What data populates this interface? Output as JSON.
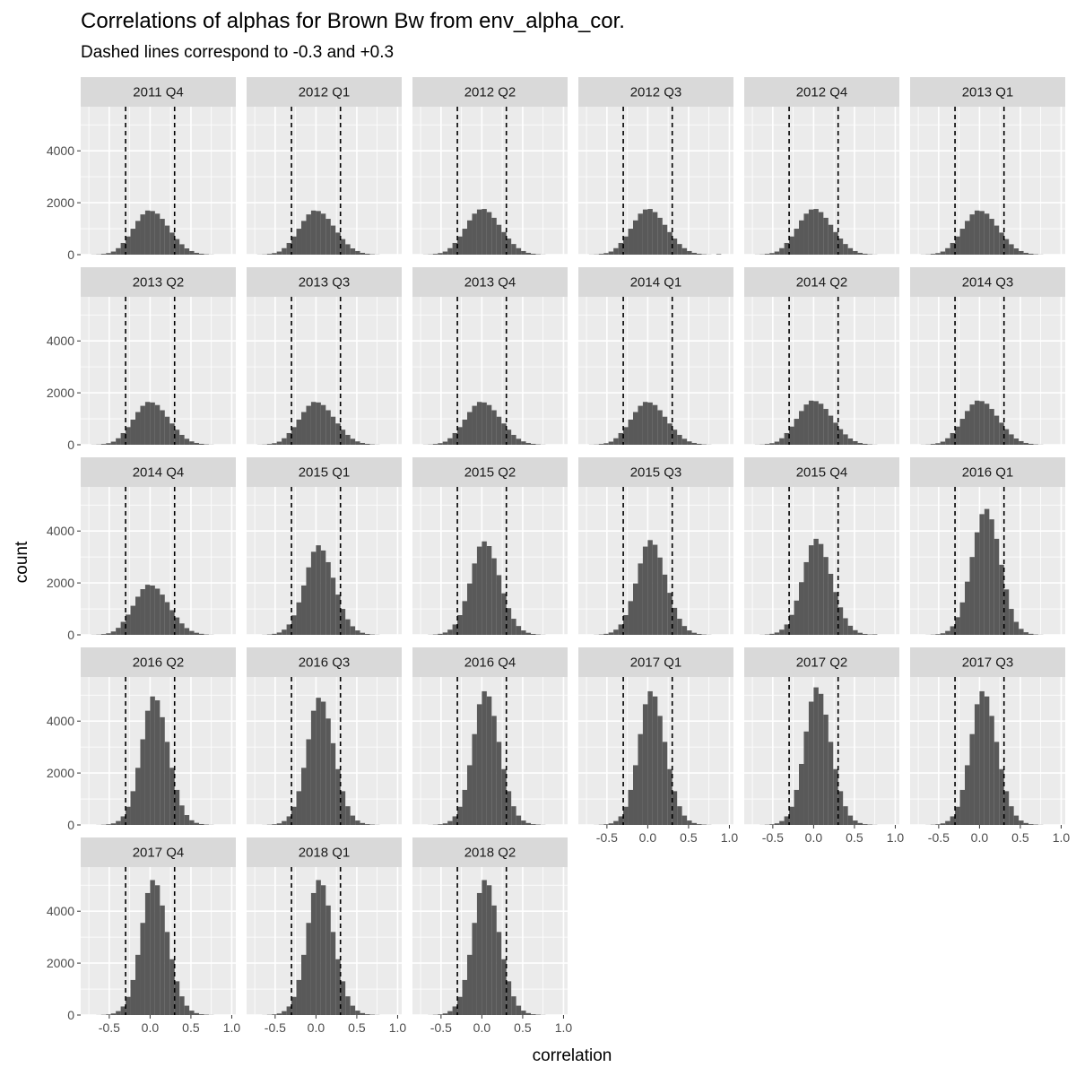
{
  "chart_data": {
    "type": "bar",
    "title": "Correlations of alphas for Brown Bw from env_alpha_cor.",
    "subtitle": "Dashed lines correspond to -0.3 and +0.3",
    "xlabel": "correlation",
    "ylabel": "count",
    "xlim": [
      -0.85,
      1.05
    ],
    "ylim": [
      0,
      5700
    ],
    "x_ticks": [
      -0.5,
      0.0,
      0.5,
      1.0
    ],
    "x_tick_labels": [
      "-0.5",
      "0.0",
      "0.5",
      "1.0"
    ],
    "y_ticks": [
      0,
      2000,
      4000
    ],
    "y_tick_labels": [
      "0",
      "2000",
      "4000"
    ],
    "reference_lines": [
      -0.3,
      0.3
    ],
    "bar_color": "#595959",
    "panel_background": "#ebebeb",
    "strip_background": "#d9d9d9",
    "grid": true,
    "facet_layout": {
      "ncol": 6,
      "nrow": 5
    },
    "bin_centers": [
      -0.75,
      -0.69,
      -0.63,
      -0.57,
      -0.51,
      -0.45,
      -0.39,
      -0.33,
      -0.27,
      -0.21,
      -0.15,
      -0.09,
      -0.03,
      0.03,
      0.09,
      0.15,
      0.21,
      0.27,
      0.33,
      0.39,
      0.45,
      0.51,
      0.57,
      0.63,
      0.69,
      0.75,
      0.81,
      0.87,
      0.93
    ],
    "facets": [
      {
        "label": "2011 Q4",
        "values": [
          0,
          5,
          10,
          30,
          60,
          120,
          250,
          450,
          700,
          1000,
          1300,
          1550,
          1700,
          1680,
          1580,
          1380,
          1120,
          850,
          600,
          400,
          240,
          140,
          70,
          35,
          15,
          5,
          0,
          0,
          0
        ]
      },
      {
        "label": "2012 Q1",
        "values": [
          0,
          5,
          10,
          30,
          60,
          120,
          250,
          450,
          700,
          1000,
          1300,
          1550,
          1700,
          1680,
          1580,
          1380,
          1120,
          850,
          600,
          400,
          240,
          140,
          70,
          35,
          15,
          5,
          0,
          0,
          0
        ]
      },
      {
        "label": "2012 Q2",
        "values": [
          0,
          5,
          10,
          30,
          60,
          120,
          250,
          450,
          700,
          1000,
          1320,
          1580,
          1740,
          1760,
          1640,
          1420,
          1150,
          870,
          620,
          410,
          250,
          140,
          70,
          35,
          15,
          5,
          0,
          0,
          0
        ]
      },
      {
        "label": "2012 Q3",
        "values": [
          0,
          5,
          10,
          30,
          60,
          120,
          250,
          450,
          700,
          1000,
          1320,
          1580,
          1740,
          1760,
          1640,
          1420,
          1150,
          870,
          620,
          410,
          250,
          140,
          70,
          35,
          15,
          5,
          0,
          20,
          0
        ]
      },
      {
        "label": "2012 Q4",
        "values": [
          0,
          5,
          10,
          30,
          60,
          120,
          250,
          450,
          700,
          1000,
          1320,
          1580,
          1740,
          1760,
          1640,
          1420,
          1150,
          870,
          620,
          410,
          250,
          140,
          70,
          35,
          15,
          5,
          0,
          0,
          0
        ]
      },
      {
        "label": "2013 Q1",
        "values": [
          0,
          5,
          10,
          30,
          60,
          120,
          250,
          450,
          700,
          1000,
          1300,
          1550,
          1700,
          1680,
          1580,
          1380,
          1120,
          850,
          600,
          400,
          240,
          140,
          70,
          35,
          15,
          5,
          0,
          0,
          0
        ]
      },
      {
        "label": "2013 Q2",
        "values": [
          0,
          5,
          10,
          30,
          60,
          120,
          250,
          450,
          680,
          970,
          1260,
          1500,
          1650,
          1630,
          1530,
          1330,
          1080,
          820,
          580,
          380,
          230,
          130,
          70,
          35,
          15,
          5,
          0,
          0,
          0
        ]
      },
      {
        "label": "2013 Q3",
        "values": [
          0,
          5,
          10,
          30,
          60,
          120,
          250,
          450,
          680,
          970,
          1260,
          1500,
          1650,
          1630,
          1530,
          1330,
          1080,
          820,
          580,
          380,
          230,
          130,
          70,
          35,
          15,
          5,
          0,
          0,
          0
        ]
      },
      {
        "label": "2013 Q4",
        "values": [
          0,
          5,
          10,
          30,
          60,
          120,
          250,
          450,
          680,
          970,
          1260,
          1500,
          1650,
          1630,
          1530,
          1330,
          1080,
          820,
          580,
          380,
          230,
          130,
          70,
          35,
          15,
          5,
          0,
          0,
          0
        ]
      },
      {
        "label": "2014 Q1",
        "values": [
          0,
          5,
          10,
          30,
          60,
          120,
          250,
          450,
          680,
          970,
          1260,
          1500,
          1650,
          1630,
          1530,
          1330,
          1080,
          820,
          580,
          380,
          230,
          130,
          70,
          35,
          15,
          5,
          0,
          0,
          0
        ]
      },
      {
        "label": "2014 Q2",
        "values": [
          0,
          5,
          10,
          30,
          60,
          120,
          250,
          450,
          700,
          1000,
          1300,
          1550,
          1700,
          1680,
          1580,
          1380,
          1120,
          850,
          600,
          400,
          240,
          140,
          70,
          35,
          15,
          5,
          0,
          0,
          0
        ]
      },
      {
        "label": "2014 Q3",
        "values": [
          0,
          5,
          10,
          30,
          60,
          120,
          250,
          450,
          700,
          1000,
          1300,
          1550,
          1700,
          1680,
          1580,
          1380,
          1120,
          850,
          600,
          400,
          240,
          140,
          70,
          35,
          15,
          5,
          0,
          0,
          0
        ]
      },
      {
        "label": "2014 Q4",
        "values": [
          0,
          5,
          10,
          30,
          60,
          130,
          270,
          500,
          780,
          1120,
          1470,
          1760,
          1930,
          1900,
          1780,
          1550,
          1260,
          950,
          670,
          440,
          260,
          150,
          80,
          40,
          15,
          5,
          0,
          0,
          0
        ]
      },
      {
        "label": "2015 Q1",
        "values": [
          0,
          0,
          5,
          15,
          40,
          90,
          200,
          400,
          750,
          1250,
          1900,
          2600,
          3200,
          3450,
          3250,
          2800,
          2200,
          1550,
          1000,
          600,
          330,
          170,
          80,
          35,
          15,
          5,
          0,
          0,
          0
        ]
      },
      {
        "label": "2015 Q2",
        "values": [
          0,
          0,
          5,
          15,
          40,
          90,
          200,
          400,
          760,
          1300,
          1980,
          2750,
          3400,
          3600,
          3420,
          2950,
          2300,
          1600,
          1030,
          620,
          340,
          170,
          80,
          35,
          15,
          5,
          0,
          0,
          0
        ]
      },
      {
        "label": "2015 Q3",
        "values": [
          0,
          0,
          5,
          15,
          40,
          90,
          200,
          400,
          760,
          1300,
          1980,
          2750,
          3400,
          3650,
          3470,
          2980,
          2320,
          1620,
          1040,
          620,
          340,
          170,
          80,
          35,
          15,
          5,
          0,
          0,
          0
        ]
      },
      {
        "label": "2015 Q4",
        "values": [
          0,
          0,
          5,
          15,
          40,
          90,
          200,
          400,
          770,
          1320,
          2030,
          2800,
          3450,
          3700,
          3500,
          3000,
          2350,
          1650,
          1060,
          640,
          350,
          180,
          80,
          35,
          15,
          20,
          0,
          0,
          0
        ]
      },
      {
        "label": "2016 Q1",
        "values": [
          0,
          0,
          3,
          10,
          25,
          60,
          150,
          330,
          680,
          1250,
          2050,
          3000,
          3950,
          4650,
          4850,
          4450,
          3700,
          2700,
          1750,
          1000,
          500,
          230,
          100,
          40,
          15,
          5,
          0,
          0,
          0
        ]
      },
      {
        "label": "2016 Q2",
        "values": [
          0,
          0,
          3,
          10,
          25,
          60,
          150,
          330,
          700,
          1300,
          2200,
          3300,
          4400,
          4950,
          4800,
          4150,
          3200,
          2200,
          1350,
          750,
          380,
          180,
          80,
          35,
          15,
          5,
          0,
          0,
          0
        ]
      },
      {
        "label": "2016 Q3",
        "values": [
          0,
          0,
          3,
          10,
          25,
          60,
          150,
          330,
          700,
          1300,
          2200,
          3300,
          4400,
          4900,
          4750,
          4100,
          3150,
          2150,
          1300,
          720,
          360,
          170,
          75,
          30,
          15,
          5,
          0,
          0,
          0
        ]
      },
      {
        "label": "2016 Q4",
        "values": [
          0,
          0,
          3,
          10,
          25,
          60,
          150,
          330,
          700,
          1350,
          2300,
          3500,
          4650,
          5150,
          4950,
          4200,
          3200,
          2150,
          1300,
          720,
          360,
          170,
          75,
          30,
          15,
          5,
          0,
          0,
          0
        ]
      },
      {
        "label": "2017 Q1",
        "values": [
          0,
          0,
          3,
          10,
          25,
          60,
          150,
          330,
          700,
          1350,
          2300,
          3500,
          4650,
          5150,
          4950,
          4200,
          3200,
          2150,
          1300,
          720,
          360,
          170,
          75,
          30,
          15,
          5,
          0,
          0,
          0
        ]
      },
      {
        "label": "2017 Q2",
        "values": [
          0,
          0,
          3,
          10,
          25,
          60,
          150,
          330,
          700,
          1350,
          2350,
          3600,
          4750,
          5300,
          5050,
          4250,
          3200,
          2150,
          1300,
          720,
          360,
          170,
          75,
          30,
          15,
          5,
          0,
          0,
          0
        ]
      },
      {
        "label": "2017 Q3",
        "values": [
          0,
          0,
          3,
          10,
          25,
          60,
          150,
          330,
          700,
          1350,
          2300,
          3500,
          4650,
          5150,
          4950,
          4200,
          3200,
          2150,
          1300,
          720,
          360,
          170,
          75,
          30,
          15,
          5,
          0,
          0,
          0
        ]
      },
      {
        "label": "2017 Q4",
        "values": [
          0,
          0,
          3,
          10,
          25,
          60,
          150,
          330,
          700,
          1350,
          2320,
          3550,
          4700,
          5200,
          5000,
          4220,
          3200,
          2150,
          1300,
          720,
          360,
          170,
          75,
          30,
          15,
          5,
          0,
          0,
          0
        ]
      },
      {
        "label": "2018 Q1",
        "values": [
          0,
          0,
          3,
          10,
          25,
          60,
          150,
          330,
          700,
          1350,
          2320,
          3550,
          4700,
          5200,
          5000,
          4220,
          3200,
          2150,
          1300,
          720,
          360,
          170,
          75,
          30,
          15,
          5,
          0,
          0,
          0
        ]
      },
      {
        "label": "2018 Q2",
        "values": [
          0,
          0,
          3,
          10,
          25,
          60,
          150,
          330,
          700,
          1350,
          2320,
          3550,
          4700,
          5200,
          5000,
          4220,
          3200,
          2150,
          1300,
          720,
          360,
          170,
          75,
          30,
          15,
          5,
          0,
          0,
          0
        ]
      }
    ]
  }
}
